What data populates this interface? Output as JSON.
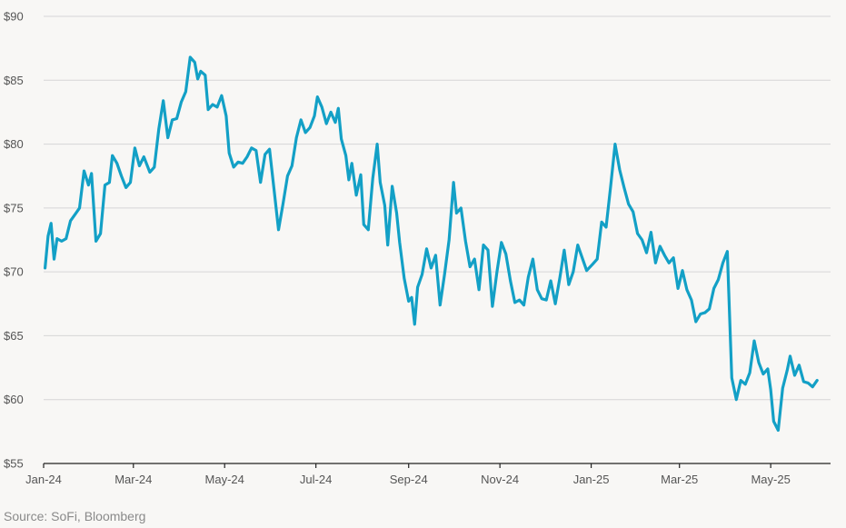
{
  "chart_data": {
    "type": "line",
    "y_ticks": [
      "$55",
      "$60",
      "$65",
      "$70",
      "$75",
      "$80",
      "$85",
      "$90"
    ],
    "y_tick_values": [
      55,
      60,
      65,
      70,
      75,
      80,
      85,
      90
    ],
    "ylim": [
      55,
      90
    ],
    "x_ticks": [
      "Jan-24",
      "Mar-24",
      "May-24",
      "Jul-24",
      "Sep-24",
      "Nov-24",
      "Jan-25",
      "Mar-25",
      "May-25"
    ],
    "x_tick_dates": [
      "2024-01-01",
      "2024-03-01",
      "2024-05-01",
      "2024-07-01",
      "2024-09-01",
      "2024-11-01",
      "2025-01-01",
      "2025-03-01",
      "2025-05-01"
    ],
    "xlim": [
      "2024-01-01",
      "2025-06-10"
    ],
    "grid": "horizontal",
    "series": [
      {
        "color": "#13a0c6",
        "points": [
          [
            "2024-01-02",
            70.3
          ],
          [
            "2024-01-04",
            72.8
          ],
          [
            "2024-01-06",
            73.8
          ],
          [
            "2024-01-08",
            71.0
          ],
          [
            "2024-01-10",
            72.6
          ],
          [
            "2024-01-13",
            72.4
          ],
          [
            "2024-01-16",
            72.6
          ],
          [
            "2024-01-19",
            74.0
          ],
          [
            "2024-01-22",
            74.5
          ],
          [
            "2024-01-25",
            75.0
          ],
          [
            "2024-01-28",
            77.9
          ],
          [
            "2024-01-31",
            76.8
          ],
          [
            "2024-02-02",
            77.7
          ],
          [
            "2024-02-05",
            72.4
          ],
          [
            "2024-02-08",
            73.0
          ],
          [
            "2024-02-11",
            76.8
          ],
          [
            "2024-02-14",
            77.0
          ],
          [
            "2024-02-16",
            79.1
          ],
          [
            "2024-02-19",
            78.5
          ],
          [
            "2024-02-22",
            77.5
          ],
          [
            "2024-02-25",
            76.6
          ],
          [
            "2024-02-28",
            77.0
          ],
          [
            "2024-03-02",
            79.7
          ],
          [
            "2024-03-05",
            78.3
          ],
          [
            "2024-03-08",
            79.0
          ],
          [
            "2024-03-12",
            77.8
          ],
          [
            "2024-03-15",
            78.2
          ],
          [
            "2024-03-18",
            81.2
          ],
          [
            "2024-03-21",
            83.4
          ],
          [
            "2024-03-24",
            80.5
          ],
          [
            "2024-03-27",
            81.9
          ],
          [
            "2024-03-30",
            82.0
          ],
          [
            "2024-04-02",
            83.3
          ],
          [
            "2024-04-05",
            84.1
          ],
          [
            "2024-04-08",
            86.8
          ],
          [
            "2024-04-11",
            86.4
          ],
          [
            "2024-04-13",
            85.1
          ],
          [
            "2024-04-15",
            85.7
          ],
          [
            "2024-04-18",
            85.4
          ],
          [
            "2024-04-20",
            82.7
          ],
          [
            "2024-04-23",
            83.1
          ],
          [
            "2024-04-26",
            82.9
          ],
          [
            "2024-04-29",
            83.8
          ],
          [
            "2024-05-02",
            82.2
          ],
          [
            "2024-05-04",
            79.3
          ],
          [
            "2024-05-07",
            78.2
          ],
          [
            "2024-05-10",
            78.6
          ],
          [
            "2024-05-13",
            78.5
          ],
          [
            "2024-05-16",
            79.0
          ],
          [
            "2024-05-19",
            79.7
          ],
          [
            "2024-05-22",
            79.5
          ],
          [
            "2024-05-25",
            77.0
          ],
          [
            "2024-05-28",
            79.2
          ],
          [
            "2024-05-31",
            79.6
          ],
          [
            "2024-06-03",
            76.5
          ],
          [
            "2024-06-06",
            73.3
          ],
          [
            "2024-06-09",
            75.3
          ],
          [
            "2024-06-12",
            77.5
          ],
          [
            "2024-06-15",
            78.3
          ],
          [
            "2024-06-18",
            80.5
          ],
          [
            "2024-06-21",
            81.9
          ],
          [
            "2024-06-24",
            80.9
          ],
          [
            "2024-06-27",
            81.3
          ],
          [
            "2024-06-30",
            82.2
          ],
          [
            "2024-07-02",
            83.7
          ],
          [
            "2024-07-05",
            82.9
          ],
          [
            "2024-07-08",
            81.6
          ],
          [
            "2024-07-11",
            82.5
          ],
          [
            "2024-07-14",
            81.7
          ],
          [
            "2024-07-16",
            82.8
          ],
          [
            "2024-07-18",
            80.4
          ],
          [
            "2024-07-21",
            79.1
          ],
          [
            "2024-07-23",
            77.2
          ],
          [
            "2024-07-25",
            78.5
          ],
          [
            "2024-07-28",
            76.0
          ],
          [
            "2024-07-31",
            77.6
          ],
          [
            "2024-08-02",
            73.7
          ],
          [
            "2024-08-05",
            73.3
          ],
          [
            "2024-08-08",
            77.3
          ],
          [
            "2024-08-11",
            80.0
          ],
          [
            "2024-08-13",
            77.0
          ],
          [
            "2024-08-16",
            75.2
          ],
          [
            "2024-08-18",
            72.1
          ],
          [
            "2024-08-21",
            76.7
          ],
          [
            "2024-08-24",
            74.6
          ],
          [
            "2024-08-26",
            72.3
          ],
          [
            "2024-08-29",
            69.5
          ],
          [
            "2024-09-01",
            67.7
          ],
          [
            "2024-09-03",
            68.0
          ],
          [
            "2024-09-05",
            65.9
          ],
          [
            "2024-09-07",
            68.8
          ],
          [
            "2024-09-10",
            69.8
          ],
          [
            "2024-09-13",
            71.8
          ],
          [
            "2024-09-16",
            70.3
          ],
          [
            "2024-09-19",
            71.3
          ],
          [
            "2024-09-22",
            67.4
          ],
          [
            "2024-09-25",
            69.8
          ],
          [
            "2024-09-28",
            72.5
          ],
          [
            "2024-10-01",
            77.0
          ],
          [
            "2024-10-03",
            74.6
          ],
          [
            "2024-10-06",
            75.0
          ],
          [
            "2024-10-09",
            72.4
          ],
          [
            "2024-10-12",
            70.4
          ],
          [
            "2024-10-15",
            71.0
          ],
          [
            "2024-10-18",
            68.6
          ],
          [
            "2024-10-21",
            72.1
          ],
          [
            "2024-10-24",
            71.7
          ],
          [
            "2024-10-27",
            67.3
          ],
          [
            "2024-10-30",
            70.0
          ],
          [
            "2024-11-02",
            72.3
          ],
          [
            "2024-11-05",
            71.4
          ],
          [
            "2024-11-08",
            69.3
          ],
          [
            "2024-11-11",
            67.6
          ],
          [
            "2024-11-14",
            67.8
          ],
          [
            "2024-11-17",
            67.4
          ],
          [
            "2024-11-20",
            69.6
          ],
          [
            "2024-11-23",
            71.0
          ],
          [
            "2024-11-26",
            68.6
          ],
          [
            "2024-11-29",
            67.9
          ],
          [
            "2024-12-02",
            67.8
          ],
          [
            "2024-12-05",
            69.3
          ],
          [
            "2024-12-08",
            67.5
          ],
          [
            "2024-12-11",
            69.5
          ],
          [
            "2024-12-14",
            71.7
          ],
          [
            "2024-12-17",
            69.0
          ],
          [
            "2024-12-20",
            70.0
          ],
          [
            "2024-12-23",
            72.1
          ],
          [
            "2024-12-26",
            71.1
          ],
          [
            "2024-12-29",
            70.1
          ],
          [
            "2025-01-02",
            70.6
          ],
          [
            "2025-01-05",
            71.0
          ],
          [
            "2025-01-08",
            73.9
          ],
          [
            "2025-01-11",
            73.5
          ],
          [
            "2025-01-14",
            76.7
          ],
          [
            "2025-01-17",
            80.0
          ],
          [
            "2025-01-20",
            78.0
          ],
          [
            "2025-01-23",
            76.6
          ],
          [
            "2025-01-26",
            75.3
          ],
          [
            "2025-01-29",
            74.7
          ],
          [
            "2025-02-01",
            73.0
          ],
          [
            "2025-02-04",
            72.5
          ],
          [
            "2025-02-07",
            71.5
          ],
          [
            "2025-02-10",
            73.1
          ],
          [
            "2025-02-13",
            70.7
          ],
          [
            "2025-02-16",
            72.0
          ],
          [
            "2025-02-19",
            71.3
          ],
          [
            "2025-02-22",
            70.7
          ],
          [
            "2025-02-25",
            71.1
          ],
          [
            "2025-02-28",
            68.7
          ],
          [
            "2025-03-03",
            70.1
          ],
          [
            "2025-03-06",
            68.6
          ],
          [
            "2025-03-09",
            67.8
          ],
          [
            "2025-03-12",
            66.1
          ],
          [
            "2025-03-15",
            66.7
          ],
          [
            "2025-03-18",
            66.8
          ],
          [
            "2025-03-21",
            67.1
          ],
          [
            "2025-03-24",
            68.7
          ],
          [
            "2025-03-27",
            69.4
          ],
          [
            "2025-03-30",
            70.7
          ],
          [
            "2025-04-02",
            71.6
          ],
          [
            "2025-04-05",
            61.7
          ],
          [
            "2025-04-08",
            60.0
          ],
          [
            "2025-04-11",
            61.5
          ],
          [
            "2025-04-14",
            61.2
          ],
          [
            "2025-04-17",
            62.1
          ],
          [
            "2025-04-20",
            64.6
          ],
          [
            "2025-04-23",
            62.9
          ],
          [
            "2025-04-26",
            62.0
          ],
          [
            "2025-04-29",
            62.4
          ],
          [
            "2025-05-01",
            60.8
          ],
          [
            "2025-05-03",
            58.3
          ],
          [
            "2025-05-06",
            57.6
          ],
          [
            "2025-05-09",
            60.9
          ],
          [
            "2025-05-12",
            62.3
          ],
          [
            "2025-05-14",
            63.4
          ],
          [
            "2025-05-17",
            61.9
          ],
          [
            "2025-05-20",
            62.7
          ],
          [
            "2025-05-23",
            61.4
          ],
          [
            "2025-05-26",
            61.3
          ],
          [
            "2025-05-29",
            61.0
          ],
          [
            "2025-06-01",
            61.5
          ]
        ]
      }
    ]
  },
  "source_text": "Source: SoFi, Bloomberg",
  "colors": {
    "background": "#f8f7f5",
    "grid": "#d6d6d6",
    "axis": "#222222",
    "line": "#13a0c6"
  }
}
